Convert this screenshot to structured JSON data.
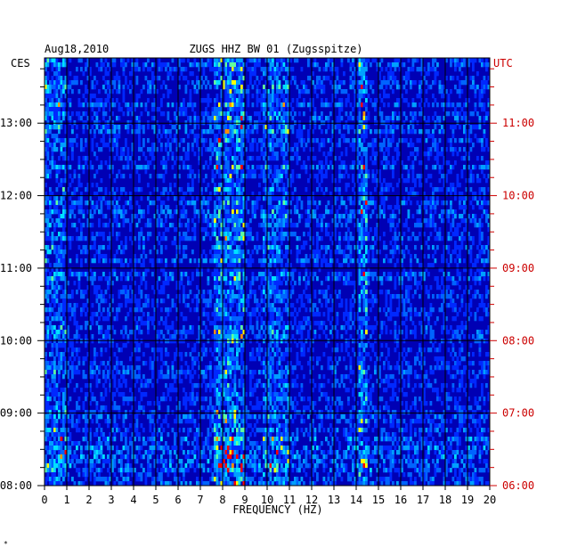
{
  "chart_data": {
    "type": "heatmap",
    "date": "Aug18,2010",
    "title": "ZUGS HHZ BW 01 (Zugsspitze)",
    "xlabel": "FREQUENCY (HZ)",
    "xlim": [
      0,
      20
    ],
    "x_ticks": [
      "0",
      "1",
      "2",
      "3",
      "4",
      "5",
      "6",
      "7",
      "8",
      "9",
      "10",
      "11",
      "12",
      "13",
      "14",
      "15",
      "16",
      "17",
      "18",
      "19",
      "20"
    ],
    "left_axis_label": "CES",
    "right_axis_label": "UTC",
    "left_ticks": [
      "13:00",
      "12:00",
      "11:00",
      "10:00",
      "09:00",
      "08:00"
    ],
    "right_ticks": [
      "11:00",
      "10:00",
      "09:00",
      "08:00",
      "07:00",
      "06:00"
    ],
    "time_range_utc": [
      "06:00",
      "11:50"
    ],
    "energy_bands_hz": [
      {
        "from": 7.6,
        "to": 9.0,
        "level": "high"
      },
      {
        "from": 9.8,
        "to": 11.0,
        "level": "medium"
      },
      {
        "from": 14.1,
        "to": 14.5,
        "level": "high"
      },
      {
        "from": 0.0,
        "to": 1.0,
        "level": "medium"
      }
    ],
    "colors": {
      "background": "#0000b4",
      "low": "#0050ff",
      "mid": "#00c8ff",
      "high": "#ffff00",
      "peak": "#ff0000",
      "utc_text": "#cc0000",
      "grid": "#000000"
    }
  }
}
